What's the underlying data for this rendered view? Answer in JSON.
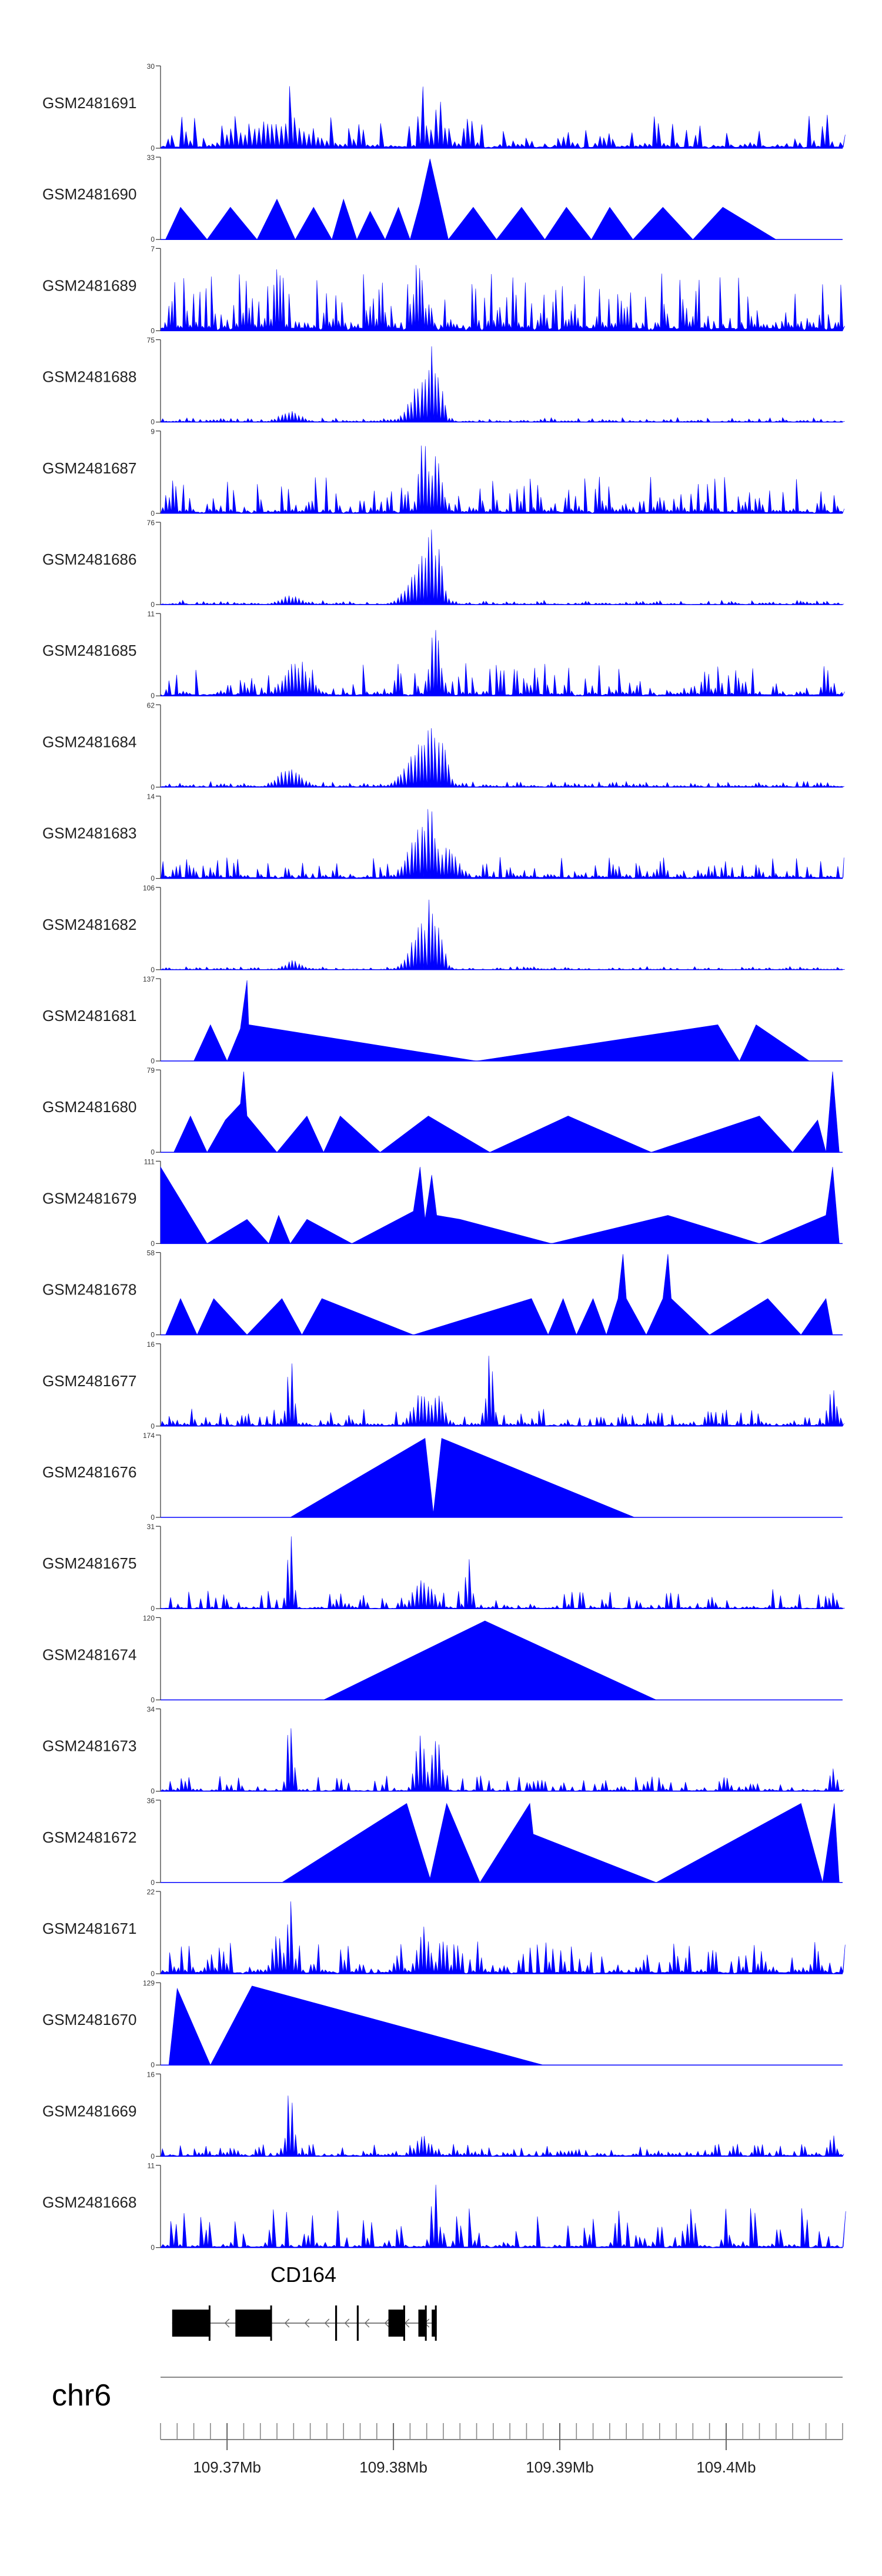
{
  "chart_data": {
    "type": "area",
    "title": "",
    "series_color": "#0000FF",
    "chromosome": "chr6",
    "gene": {
      "name": "CD164",
      "strand": "-"
    },
    "x_range_mb": [
      109.366,
      109.407
    ],
    "x_ticks": [
      {
        "value": 109.37,
        "label": "109.37Mb"
      },
      {
        "value": 109.38,
        "label": "109.38Mb"
      },
      {
        "value": 109.39,
        "label": "109.39Mb"
      },
      {
        "value": 109.4,
        "label": "109.4Mb"
      }
    ],
    "tracks": [
      {
        "name": "GSM2481691",
        "ymax": 30,
        "ymax_label": "30",
        "zero_label": "0",
        "style": "noisy",
        "base": 0.05,
        "noise": 0.35,
        "n": 150,
        "peaks": [
          [
            109.373,
            0.35,
            0.002
          ],
          [
            109.3738,
            1.0,
            0.0002
          ],
          [
            109.3817,
            0.85,
            0.0002
          ],
          [
            109.3827,
            0.7,
            0.0003
          ],
          [
            109.3845,
            0.45,
            0.0003
          ],
          [
            109.406,
            0.5,
            0.0002
          ]
        ]
      },
      {
        "name": "GSM2481690",
        "ymax": 33,
        "ymax_label": "33",
        "zero_label": "0",
        "style": "sparse",
        "pts": [
          [
            109.3663,
            0
          ],
          [
            109.3672,
            0.4
          ],
          [
            109.3688,
            0
          ],
          [
            109.3702,
            0.4
          ],
          [
            109.3718,
            0
          ],
          [
            109.373,
            0.5
          ],
          [
            109.3741,
            0
          ],
          [
            109.3752,
            0.4
          ],
          [
            109.3763,
            0
          ],
          [
            109.377,
            0.5
          ],
          [
            109.3778,
            0
          ],
          [
            109.3786,
            0.35
          ],
          [
            109.3795,
            0
          ],
          [
            109.3803,
            0.4
          ],
          [
            109.381,
            0
          ],
          [
            109.3816,
            0.45
          ],
          [
            109.3822,
            1.0
          ],
          [
            109.3833,
            0
          ],
          [
            109.3848,
            0.4
          ],
          [
            109.3862,
            0
          ],
          [
            109.3877,
            0.4
          ],
          [
            109.3891,
            0
          ],
          [
            109.3904,
            0.4
          ],
          [
            109.3919,
            0
          ],
          [
            109.393,
            0.4
          ],
          [
            109.3944,
            0
          ],
          [
            109.3962,
            0.4
          ],
          [
            109.398,
            0
          ],
          [
            109.3998,
            0.4
          ],
          [
            109.403,
            0
          ]
        ]
      },
      {
        "name": "GSM2481689",
        "ymax": 7,
        "ymax_label": "7",
        "zero_label": "0",
        "style": "noisy",
        "base": 0.1,
        "noise": 0.6,
        "n": 220,
        "peaks": [
          [
            109.3815,
            0.95,
            0.0003
          ],
          [
            109.373,
            0.9,
            0.0002
          ]
        ]
      },
      {
        "name": "GSM2481688",
        "ymax": 75,
        "ymax_label": "75",
        "zero_label": "0",
        "style": "noisy",
        "base": 0.015,
        "noise": 0.04,
        "n": 200,
        "peaks": [
          [
            109.3738,
            0.15,
            0.0006
          ],
          [
            109.3818,
            0.55,
            0.0007
          ],
          [
            109.3823,
            0.95,
            0.0003
          ],
          [
            109.3827,
            0.6,
            0.0003
          ]
        ]
      },
      {
        "name": "GSM2481687",
        "ymax": 9,
        "ymax_label": "9",
        "zero_label": "0",
        "style": "noisy",
        "base": 0.05,
        "noise": 0.4,
        "n": 200,
        "peaks": [
          [
            109.3818,
            0.95,
            0.0003
          ],
          [
            109.3826,
            0.8,
            0.0003
          ]
        ]
      },
      {
        "name": "GSM2481686",
        "ymax": 76,
        "ymax_label": "76",
        "zero_label": "0",
        "style": "noisy",
        "base": 0.015,
        "noise": 0.04,
        "n": 200,
        "peaks": [
          [
            109.3738,
            0.12,
            0.0006
          ],
          [
            109.3818,
            0.6,
            0.0008
          ],
          [
            109.3822,
            0.95,
            0.0003
          ],
          [
            109.3827,
            0.7,
            0.0003
          ]
        ]
      },
      {
        "name": "GSM2481685",
        "ymax": 11,
        "ymax_label": "11",
        "zero_label": "0",
        "style": "noisy",
        "base": 0.05,
        "noise": 0.35,
        "n": 200,
        "peaks": [
          [
            109.3742,
            0.45,
            0.0008
          ],
          [
            109.3825,
            0.95,
            0.0003
          ],
          [
            109.406,
            0.4,
            0.0002
          ]
        ]
      },
      {
        "name": "GSM2481684",
        "ymax": 62,
        "ymax_label": "62",
        "zero_label": "0",
        "style": "noisy",
        "base": 0.02,
        "noise": 0.05,
        "n": 200,
        "peaks": [
          [
            109.3738,
            0.25,
            0.0007
          ],
          [
            109.3818,
            0.6,
            0.0009
          ],
          [
            109.3822,
            0.95,
            0.0003
          ],
          [
            109.3828,
            0.7,
            0.0004
          ]
        ]
      },
      {
        "name": "GSM2481683",
        "ymax": 14,
        "ymax_label": "14",
        "zero_label": "0",
        "style": "noisy",
        "base": 0.04,
        "noise": 0.22,
        "n": 200,
        "peaks": [
          [
            109.3818,
            0.7,
            0.0008
          ],
          [
            109.3822,
            0.95,
            0.0003
          ],
          [
            109.3832,
            0.4,
            0.0006
          ]
        ]
      },
      {
        "name": "GSM2481682",
        "ymax": 106,
        "ymax_label": "106",
        "zero_label": "0",
        "style": "noisy",
        "base": 0.01,
        "noise": 0.03,
        "n": 200,
        "peaks": [
          [
            109.374,
            0.12,
            0.0005
          ],
          [
            109.3818,
            0.6,
            0.0007
          ],
          [
            109.3822,
            0.95,
            0.0003
          ],
          [
            109.3827,
            0.6,
            0.0003
          ]
        ]
      },
      {
        "name": "GSM2481681",
        "ymax": 137,
        "ymax_label": "137",
        "zero_label": "0",
        "style": "sparse",
        "pts": [
          [
            109.368,
            0
          ],
          [
            109.369,
            0.45
          ],
          [
            109.37,
            0
          ],
          [
            109.3708,
            0.4
          ],
          [
            109.3712,
            1.0
          ],
          [
            109.3713,
            0.45
          ],
          [
            109.385,
            0
          ],
          [
            109.3995,
            0.45
          ],
          [
            109.4008,
            0
          ],
          [
            109.4018,
            0.45
          ],
          [
            109.405,
            0
          ]
        ]
      },
      {
        "name": "GSM2481680",
        "ymax": 79,
        "ymax_label": "79",
        "zero_label": "0",
        "style": "sparse",
        "pts": [
          [
            109.3668,
            0
          ],
          [
            109.3678,
            0.45
          ],
          [
            109.3688,
            0
          ],
          [
            109.3699,
            0.4
          ],
          [
            109.3708,
            0.6
          ],
          [
            109.371,
            1.0
          ],
          [
            109.3712,
            0.45
          ],
          [
            109.373,
            0
          ],
          [
            109.3748,
            0.45
          ],
          [
            109.3758,
            0
          ],
          [
            109.3768,
            0.45
          ],
          [
            109.3792,
            0
          ],
          [
            109.3821,
            0.45
          ],
          [
            109.3858,
            0
          ],
          [
            109.3905,
            0.45
          ],
          [
            109.3955,
            0
          ],
          [
            109.402,
            0.45
          ],
          [
            109.404,
            0
          ],
          [
            109.4055,
            0.4
          ],
          [
            109.406,
            0
          ],
          [
            109.4064,
            1.0
          ],
          [
            109.4068,
            0
          ]
        ]
      },
      {
        "name": "GSM2481679",
        "ymax": 111,
        "ymax_label": "111",
        "zero_label": "0",
        "style": "sparse",
        "pts": [
          [
            109.366,
            0.95
          ],
          [
            109.3688,
            0
          ],
          [
            109.3712,
            0.3
          ],
          [
            109.3725,
            0
          ],
          [
            109.3731,
            0.35
          ],
          [
            109.3738,
            0
          ],
          [
            109.3748,
            0.3
          ],
          [
            109.3775,
            0
          ],
          [
            109.3812,
            0.4
          ],
          [
            109.3816,
            0.95
          ],
          [
            109.3819,
            0.3
          ],
          [
            109.3823,
            0.85
          ],
          [
            109.3826,
            0.35
          ],
          [
            109.384,
            0.3
          ],
          [
            109.3895,
            0
          ],
          [
            109.3965,
            0.35
          ],
          [
            109.402,
            0
          ],
          [
            109.406,
            0.35
          ],
          [
            109.4064,
            0.95
          ],
          [
            109.4068,
            0
          ]
        ]
      },
      {
        "name": "GSM2481678",
        "ymax": 58,
        "ymax_label": "58",
        "zero_label": "0",
        "style": "sparse",
        "pts": [
          [
            109.3663,
            0
          ],
          [
            109.3672,
            0.45
          ],
          [
            109.3682,
            0
          ],
          [
            109.3692,
            0.45
          ],
          [
            109.3712,
            0
          ],
          [
            109.3733,
            0.45
          ],
          [
            109.3745,
            0
          ],
          [
            109.3757,
            0.45
          ],
          [
            109.3812,
            0
          ],
          [
            109.3883,
            0.45
          ],
          [
            109.3893,
            0
          ],
          [
            109.3902,
            0.45
          ],
          [
            109.391,
            0
          ],
          [
            109.392,
            0.45
          ],
          [
            109.3928,
            0
          ],
          [
            109.3935,
            0.45
          ],
          [
            109.3938,
            1.0
          ],
          [
            109.394,
            0.45
          ],
          [
            109.3952,
            0
          ],
          [
            109.3962,
            0.45
          ],
          [
            109.3965,
            1.0
          ],
          [
            109.3967,
            0.45
          ],
          [
            109.399,
            0
          ],
          [
            109.4025,
            0.45
          ],
          [
            109.4045,
            0
          ],
          [
            109.406,
            0.45
          ],
          [
            109.4064,
            0
          ]
        ]
      },
      {
        "name": "GSM2481677",
        "ymax": 16,
        "ymax_label": "16",
        "zero_label": "0",
        "style": "noisy",
        "base": 0.03,
        "noise": 0.18,
        "n": 190,
        "peaks": [
          [
            109.3738,
            0.95,
            0.0002
          ],
          [
            109.3818,
            0.45,
            0.0006
          ],
          [
            109.3827,
            0.4,
            0.0004
          ],
          [
            109.3858,
            0.95,
            0.0002
          ],
          [
            109.4064,
            0.6,
            0.0002
          ]
        ]
      },
      {
        "name": "GSM2481676",
        "ymax": 174,
        "ymax_label": "174",
        "zero_label": "0",
        "style": "sparse",
        "pts": [
          [
            109.3738,
            0
          ],
          [
            109.3819,
            0.98
          ],
          [
            109.3824,
            0.05
          ],
          [
            109.3829,
            0.98
          ],
          [
            109.3945,
            0
          ]
        ]
      },
      {
        "name": "GSM2481675",
        "ymax": 31,
        "ymax_label": "31",
        "zero_label": "0",
        "style": "noisy",
        "base": 0.02,
        "noise": 0.22,
        "n": 180,
        "peaks": [
          [
            109.3738,
            0.95,
            0.0002
          ],
          [
            109.3818,
            0.4,
            0.0006
          ],
          [
            109.3845,
            0.65,
            0.0002
          ],
          [
            109.4064,
            0.25,
            0.0002
          ]
        ]
      },
      {
        "name": "GSM2481674",
        "ymax": 120,
        "ymax_label": "120",
        "zero_label": "0",
        "style": "sparse",
        "pts": [
          [
            109.3758,
            0
          ],
          [
            109.3855,
            0.98
          ],
          [
            109.3958,
            0
          ]
        ]
      },
      {
        "name": "GSM2481673",
        "ymax": 34,
        "ymax_label": "34",
        "zero_label": "0",
        "style": "noisy",
        "base": 0.02,
        "noise": 0.18,
        "n": 180,
        "peaks": [
          [
            109.3738,
            0.95,
            0.0002
          ],
          [
            109.3816,
            0.8,
            0.0003
          ],
          [
            109.3826,
            0.7,
            0.0003
          ],
          [
            109.4064,
            0.3,
            0.0002
          ]
        ]
      },
      {
        "name": "GSM2481672",
        "ymax": 36,
        "ymax_label": "36",
        "zero_label": "0",
        "style": "sparse",
        "pts": [
          [
            109.3733,
            0
          ],
          [
            109.3808,
            0.98
          ],
          [
            109.3822,
            0.05
          ],
          [
            109.3832,
            0.98
          ],
          [
            109.3852,
            0
          ],
          [
            109.3882,
            0.98
          ],
          [
            109.3884,
            0.6
          ],
          [
            109.3958,
            0
          ],
          [
            109.4045,
            0.98
          ],
          [
            109.4058,
            0
          ],
          [
            109.4065,
            0.98
          ],
          [
            109.4068,
            0
          ]
        ]
      },
      {
        "name": "GSM2481671",
        "ymax": 22,
        "ymax_label": "22",
        "zero_label": "0",
        "style": "noisy",
        "base": 0.05,
        "noise": 0.35,
        "n": 180,
        "peaks": [
          [
            109.3738,
            0.95,
            0.0002
          ],
          [
            109.373,
            0.55,
            0.0003
          ],
          [
            109.3818,
            0.6,
            0.0004
          ],
          [
            109.383,
            0.5,
            0.0003
          ]
        ]
      },
      {
        "name": "GSM2481670",
        "ymax": 129,
        "ymax_label": "129",
        "zero_label": "0",
        "style": "sparse",
        "pts": [
          [
            109.3665,
            0
          ],
          [
            109.367,
            0.95
          ],
          [
            109.369,
            0
          ],
          [
            109.3715,
            0.98
          ],
          [
            109.389,
            0
          ]
        ]
      },
      {
        "name": "GSM2481669",
        "ymax": 16,
        "ymax_label": "16",
        "zero_label": "0",
        "style": "noisy",
        "base": 0.03,
        "noise": 0.12,
        "n": 190,
        "peaks": [
          [
            109.3738,
            0.95,
            0.0002
          ],
          [
            109.3818,
            0.25,
            0.0005
          ],
          [
            109.4064,
            0.3,
            0.0002
          ]
        ]
      },
      {
        "name": "GSM2481668",
        "ymax": 11,
        "ymax_label": "11",
        "zero_label": "0",
        "style": "noisy",
        "base": 0.03,
        "noise": 0.45,
        "n": 160,
        "peaks": [
          [
            109.3825,
            0.98,
            0.0002
          ]
        ]
      }
    ],
    "gene_model": {
      "exons": [
        [
          109.3667,
          109.369,
          "thick"
        ],
        [
          109.3705,
          109.3727,
          "thick"
        ],
        [
          109.3765,
          109.3766,
          "thin"
        ],
        [
          109.3778,
          109.3779,
          "thin"
        ],
        [
          109.3797,
          109.3807,
          "thick"
        ],
        [
          109.3815,
          109.382,
          "thick"
        ],
        [
          109.3823,
          109.3826,
          "thick"
        ]
      ],
      "span": [
        109.3667,
        109.3826
      ]
    }
  }
}
